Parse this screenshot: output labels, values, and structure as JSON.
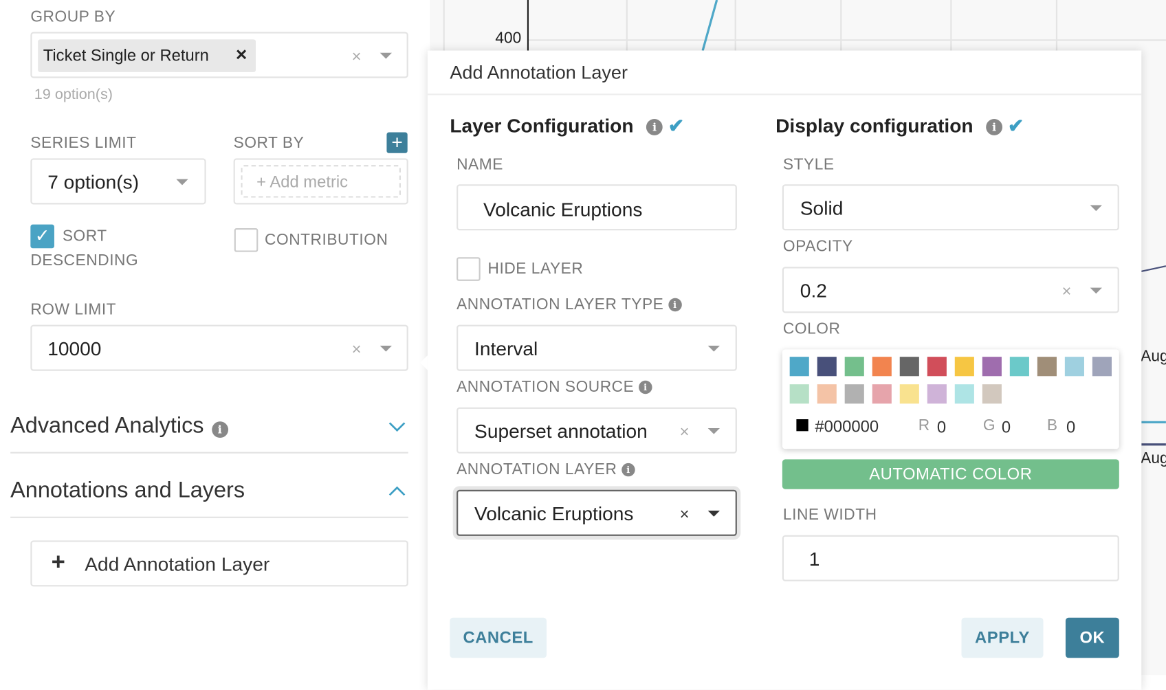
{
  "left_panel": {
    "group_by": {
      "label": "GROUP BY",
      "tag": "Ticket Single or Return",
      "tag_remove": "×",
      "clear": "×",
      "options_count": "19 option(s)"
    },
    "series_limit": {
      "label": "SERIES LIMIT",
      "value": "7 option(s)"
    },
    "sort_by": {
      "label": "SORT BY",
      "add": "+",
      "placeholder": "+ Add metric"
    },
    "sort_descending": {
      "label_line1": "SORT",
      "label_line2": "DESCENDING",
      "checked": true
    },
    "contribution": {
      "label": "CONTRIBUTION",
      "checked": false
    },
    "row_limit": {
      "label": "ROW LIMIT",
      "value": "10000",
      "clear": "×"
    },
    "sections": [
      {
        "title": "Advanced Analytics",
        "expanded": false
      },
      {
        "title": "Annotations and Layers",
        "expanded": true
      }
    ],
    "add_annotation_layer": "Add Annotation Layer"
  },
  "chart_bg": {
    "y_tick": "400",
    "x_ticks": [
      "Aug",
      "Aug"
    ]
  },
  "modal": {
    "title": "Add Annotation Layer",
    "layer_config": {
      "heading": "Layer Configuration",
      "name_label": "NAME",
      "name_value": "Volcanic Eruptions",
      "hide_layer_label": "HIDE LAYER",
      "hide_layer_checked": false,
      "type_label": "ANNOTATION LAYER TYPE",
      "type_value": "Interval",
      "source_label": "ANNOTATION SOURCE",
      "source_value": "Superset annotation",
      "layer_label": "ANNOTATION LAYER",
      "layer_value": "Volcanic Eruptions",
      "clear": "×"
    },
    "display_config": {
      "heading": "Display configuration",
      "style_label": "STYLE",
      "style_value": "Solid",
      "opacity_label": "OPACITY",
      "opacity_value": "0.2",
      "color_label": "COLOR",
      "swatches": [
        "#4fa8c8",
        "#48507a",
        "#74bf8c",
        "#f2844f",
        "#666666",
        "#d14e5a",
        "#f6c643",
        "#9f6dae",
        "#6bc9c9",
        "#a08e78",
        "#9fd0e0",
        "#9fa4ba",
        "#b6e0c6",
        "#f4c3a6",
        "#b1b1b1",
        "#e6a4ab",
        "#f9e28f",
        "#cfb3d8",
        "#aee4e5",
        "#d2c8be"
      ],
      "hex": "#000000",
      "r_label": "R",
      "r": "0",
      "g_label": "G",
      "g": "0",
      "b_label": "B",
      "b": "0",
      "automatic_color": "AUTOMATIC COLOR",
      "line_width_label": "LINE WIDTH",
      "line_width_value": "1",
      "clear": "×"
    },
    "buttons": {
      "cancel": "CANCEL",
      "apply": "APPLY",
      "ok": "OK"
    }
  },
  "colors": {
    "primary": "#3d7f9a",
    "checkbox": "#4aa3c4",
    "auto_color": "#73bf8c"
  }
}
